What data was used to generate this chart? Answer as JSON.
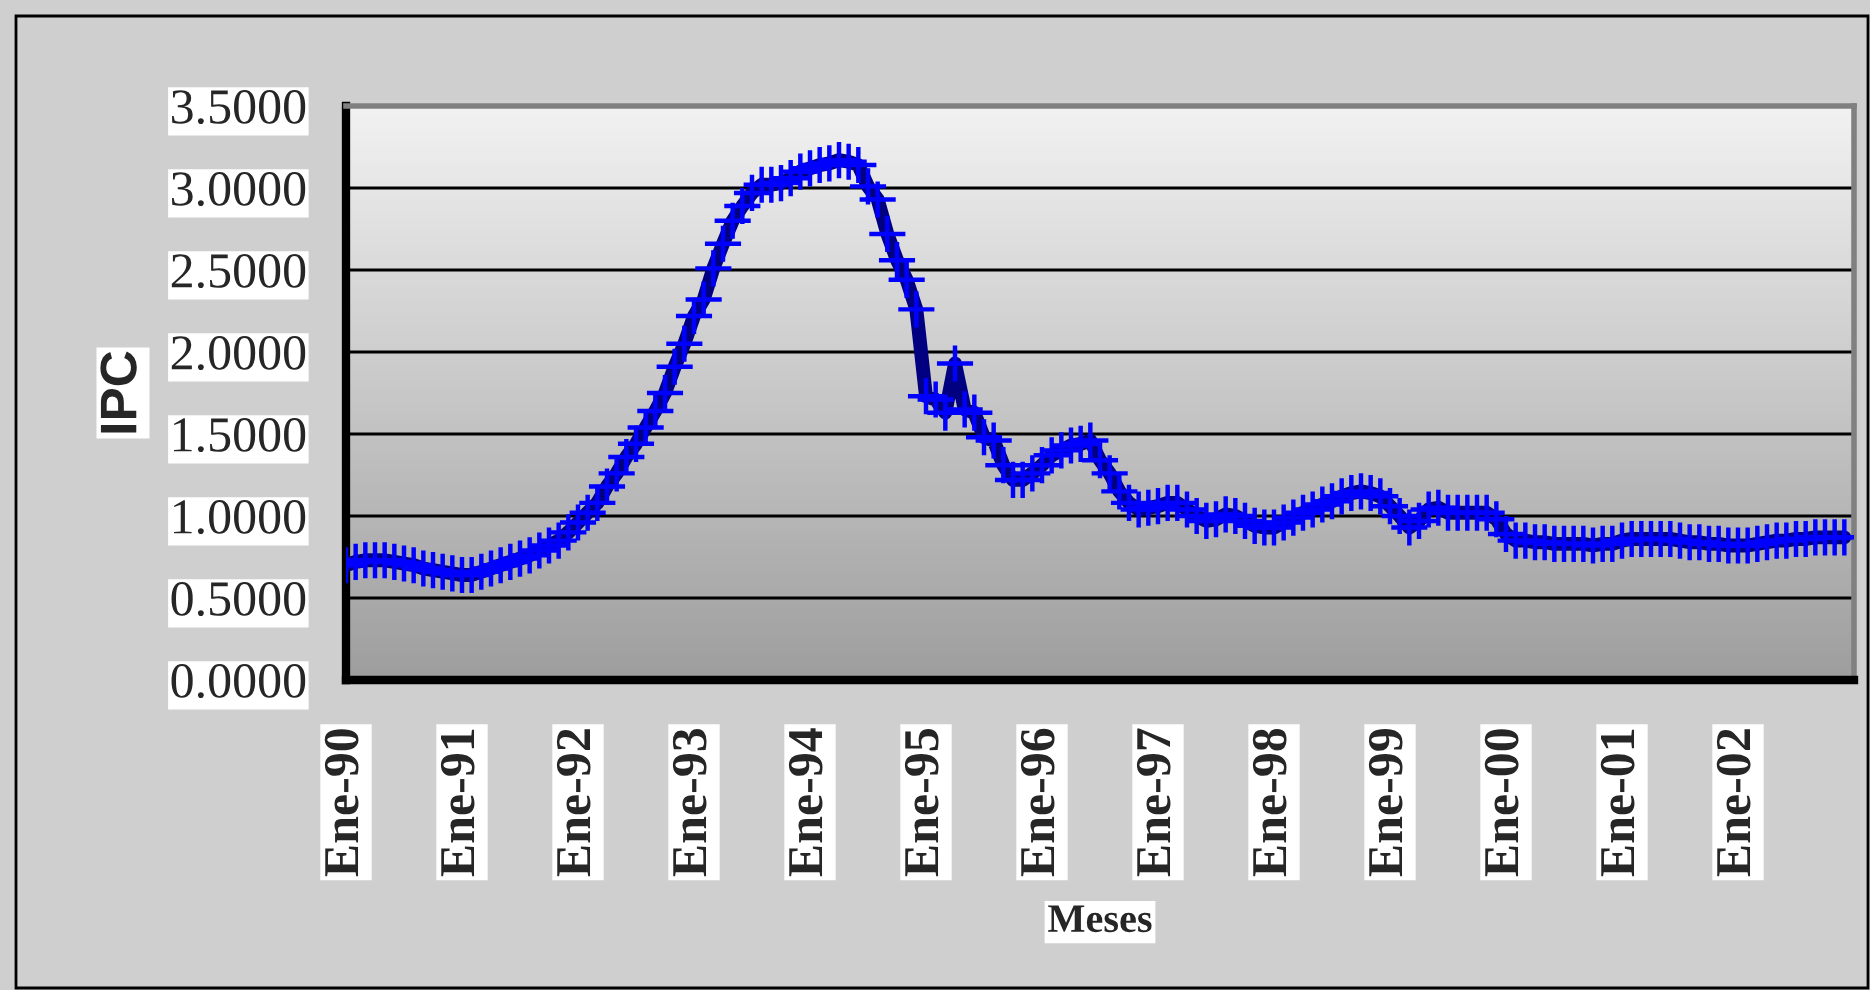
{
  "chart_data": {
    "type": "line",
    "xlabel": "Meses",
    "ylabel": "IPC",
    "categories": [
      "Ene-90",
      null,
      null,
      null,
      null,
      null,
      null,
      null,
      null,
      null,
      null,
      null,
      "Ene-91",
      null,
      null,
      null,
      null,
      null,
      null,
      null,
      null,
      null,
      null,
      null,
      "Ene-92",
      null,
      null,
      null,
      null,
      null,
      null,
      null,
      null,
      null,
      null,
      null,
      "Ene-93",
      null,
      null,
      null,
      null,
      null,
      null,
      null,
      null,
      null,
      null,
      null,
      "Ene-94",
      null,
      null,
      null,
      null,
      null,
      null,
      null,
      null,
      null,
      null,
      null,
      "Ene-95",
      null,
      null,
      null,
      null,
      null,
      null,
      null,
      null,
      null,
      null,
      null,
      "Ene-96",
      null,
      null,
      null,
      null,
      null,
      null,
      null,
      null,
      null,
      null,
      null,
      "Ene-97",
      null,
      null,
      null,
      null,
      null,
      null,
      null,
      null,
      null,
      null,
      null,
      "Ene-98",
      null,
      null,
      null,
      null,
      null,
      null,
      null,
      null,
      null,
      null,
      null,
      "Ene-99",
      null,
      null,
      null,
      null,
      null,
      null,
      null,
      null,
      null,
      null,
      null,
      "Ene-00",
      null,
      null,
      null,
      null,
      null,
      null,
      null,
      null,
      null,
      null,
      null,
      "Ene-01",
      null,
      null,
      null,
      null,
      null,
      null,
      null,
      null,
      null,
      null,
      null,
      "Ene-02",
      null,
      null,
      null,
      null,
      null,
      null,
      null,
      null,
      null,
      null,
      null
    ],
    "series": [
      {
        "color": "#000080",
        "values": [
          0.7,
          0.72,
          0.73,
          0.73,
          0.73,
          0.72,
          0.71,
          0.7,
          0.68,
          0.67,
          0.66,
          0.65,
          0.64,
          0.64,
          0.66,
          0.68,
          0.7,
          0.72,
          0.74,
          0.76,
          0.79,
          0.82,
          0.85,
          0.9,
          0.96,
          1.02,
          1.08,
          1.18,
          1.26,
          1.36,
          1.44,
          1.54,
          1.64,
          1.75,
          1.91,
          2.05,
          2.22,
          2.32,
          2.51,
          2.66,
          2.8,
          2.89,
          2.97,
          3.02,
          3.02,
          3.03,
          3.06,
          3.1,
          3.12,
          3.14,
          3.15,
          3.17,
          3.16,
          3.14,
          3.01,
          2.93,
          2.72,
          2.56,
          2.44,
          2.26,
          1.73,
          1.71,
          1.63,
          1.93,
          1.65,
          1.63,
          1.48,
          1.46,
          1.31,
          1.22,
          1.22,
          1.26,
          1.31,
          1.37,
          1.4,
          1.43,
          1.44,
          1.46,
          1.34,
          1.26,
          1.15,
          1.08,
          1.04,
          1.05,
          1.06,
          1.08,
          1.08,
          1.04,
          1.0,
          0.97,
          0.98,
          1.01,
          1.0,
          0.97,
          0.94,
          0.93,
          0.93,
          0.96,
          0.99,
          1.02,
          1.04,
          1.07,
          1.09,
          1.12,
          1.14,
          1.15,
          1.14,
          1.12,
          1.06,
          1.0,
          0.93,
          0.97,
          1.04,
          1.05,
          1.02,
          1.02,
          1.02,
          1.02,
          1.02,
          0.98,
          0.89,
          0.85,
          0.85,
          0.84,
          0.84,
          0.83,
          0.83,
          0.83,
          0.83,
          0.82,
          0.83,
          0.83,
          0.85,
          0.86,
          0.86,
          0.86,
          0.86,
          0.86,
          0.85,
          0.84,
          0.84,
          0.83,
          0.83,
          0.82,
          0.82,
          0.82,
          0.83,
          0.84,
          0.85,
          0.85,
          0.86,
          0.86,
          0.87,
          0.87,
          0.87,
          0.87
        ]
      }
    ],
    "ylim": [
      0,
      3.5
    ],
    "yticks": [
      {
        "value": 0,
        "label": "0.0000"
      },
      {
        "value": 0.5,
        "label": "0.5000"
      },
      {
        "value": 1,
        "label": "1.0000"
      },
      {
        "value": 1.5,
        "label": "1.5000"
      },
      {
        "value": 2,
        "label": "2.0000"
      },
      {
        "value": 2.5,
        "label": "2.5000"
      },
      {
        "value": 3,
        "label": "3.0000"
      },
      {
        "value": 3.5,
        "label": "3.5000"
      }
    ],
    "grid": "y",
    "marker": "cross",
    "line_style": "solid"
  }
}
